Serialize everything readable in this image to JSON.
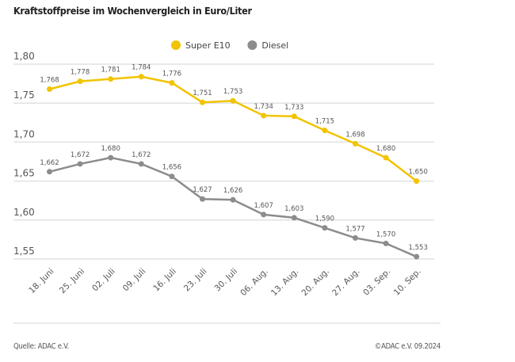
{
  "chart_data": {
    "type": "line",
    "title": "Kraftstoffpreise im Wochenvergleich in Euro/Liter",
    "categories": [
      "18. Juni",
      "25. Juni",
      "02. Juli",
      "09. Juli",
      "16. Juli",
      "23. Juli",
      "30. Juli",
      "06. Aug.",
      "13. Aug.",
      "20. Aug.",
      "27. Aug.",
      "03. Sep.",
      "10. Sep."
    ],
    "series": [
      {
        "name": "Super E10",
        "color": "#f2c300",
        "values": [
          1.768,
          1.778,
          1.781,
          1.784,
          1.776,
          1.751,
          1.753,
          1.734,
          1.733,
          1.715,
          1.698,
          1.68,
          1.65
        ],
        "labels": [
          "1,768",
          "1,778",
          "1,781",
          "1,784",
          "1,776",
          "1,751",
          "1,753",
          "1,734",
          "1,733",
          "1,715",
          "1,698",
          "1,680",
          "1,650"
        ]
      },
      {
        "name": "Diesel",
        "color": "#8c8c8c",
        "values": [
          1.662,
          1.672,
          1.68,
          1.672,
          1.656,
          1.627,
          1.626,
          1.607,
          1.603,
          1.59,
          1.577,
          1.57,
          1.553
        ],
        "labels": [
          "1,662",
          "1,672",
          "1,680",
          "1,672",
          "1,656",
          "1,627",
          "1,626",
          "1,607",
          "1,603",
          "1,590",
          "1,577",
          "1,570",
          "1,553"
        ]
      }
    ],
    "ylim": [
      1.55,
      1.8
    ],
    "yticks": [
      1.8,
      1.75,
      1.7,
      1.65,
      1.6,
      1.55
    ],
    "ytick_labels": [
      "1,80",
      "1,75",
      "1,70",
      "1,65",
      "1,60",
      "1,55"
    ],
    "grid": true,
    "legend": "top-center"
  },
  "footer": {
    "source": "Quelle: ADAC e.V.",
    "copyright": "©ADAC e.V. 09.2024"
  }
}
